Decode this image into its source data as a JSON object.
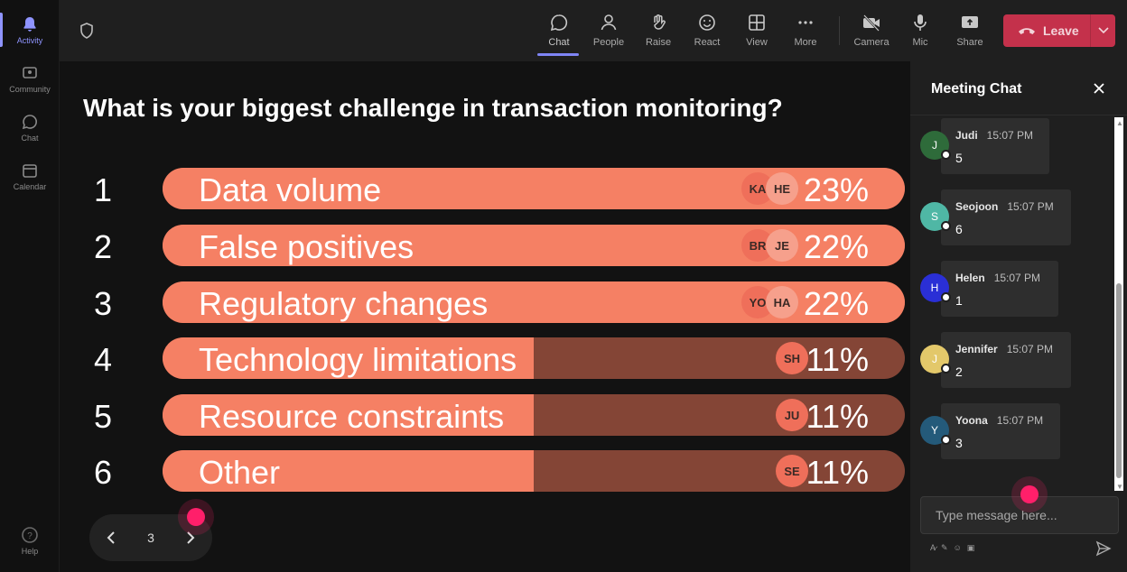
{
  "rail": {
    "items": [
      {
        "label": "Activity",
        "icon": "bell-icon"
      },
      {
        "label": "Community",
        "icon": "community-icon"
      },
      {
        "label": "Chat",
        "icon": "chat-icon"
      },
      {
        "label": "Calendar",
        "icon": "calendar-icon"
      }
    ],
    "help": "Help"
  },
  "toolbar": {
    "chat": "Chat",
    "people": "People",
    "raise": "Raise",
    "react": "React",
    "view": "View",
    "more": "More",
    "camera": "Camera",
    "mic": "Mic",
    "share": "Share",
    "leave": "Leave"
  },
  "poll": {
    "question": "What is your biggest challenge in transaction monitoring?",
    "options": [
      {
        "num": "1",
        "label": "Data volume",
        "pct": "23%",
        "fraction": 1.0,
        "avatars": [
          "KA",
          "HE"
        ]
      },
      {
        "num": "2",
        "label": "False positives",
        "pct": "22%",
        "fraction": 1.0,
        "avatars": [
          "BR",
          "JE"
        ]
      },
      {
        "num": "3",
        "label": "Regulatory changes",
        "pct": "22%",
        "fraction": 1.0,
        "avatars": [
          "YO",
          "HA"
        ]
      },
      {
        "num": "4",
        "label": "Technology limitations",
        "pct": "11%",
        "fraction": 0.5,
        "avatars": [
          "SH"
        ]
      },
      {
        "num": "5",
        "label": "Resource constraints",
        "pct": "11%",
        "fraction": 0.5,
        "avatars": [
          "JU"
        ]
      },
      {
        "num": "6",
        "label": "Other",
        "pct": "11%",
        "fraction": 0.5,
        "avatars": [
          "SE"
        ]
      }
    ],
    "page": "3"
  },
  "chat": {
    "title": "Meeting Chat",
    "messages": [
      {
        "initial": "J",
        "name": "Judi",
        "time": "15:07 PM",
        "text": "5",
        "color": "#2e6b3a"
      },
      {
        "initial": "S",
        "name": "Seojoon",
        "time": "15:07 PM",
        "text": "6",
        "color": "#4fb7a5"
      },
      {
        "initial": "H",
        "name": "Helen",
        "time": "15:07 PM",
        "text": "1",
        "color": "#2a2fd6"
      },
      {
        "initial": "J",
        "name": "Jennifer",
        "time": "15:07 PM",
        "text": "2",
        "color": "#e3c86a"
      },
      {
        "initial": "Y",
        "name": "Yoona",
        "time": "15:07 PM",
        "text": "3",
        "color": "#245a7a"
      }
    ],
    "placeholder": "Type message here..."
  },
  "colors": {
    "bar_fill": "#f58064",
    "bar_track": "#844536",
    "leave": "#c4314b",
    "cursor": "#ff1f6a"
  }
}
